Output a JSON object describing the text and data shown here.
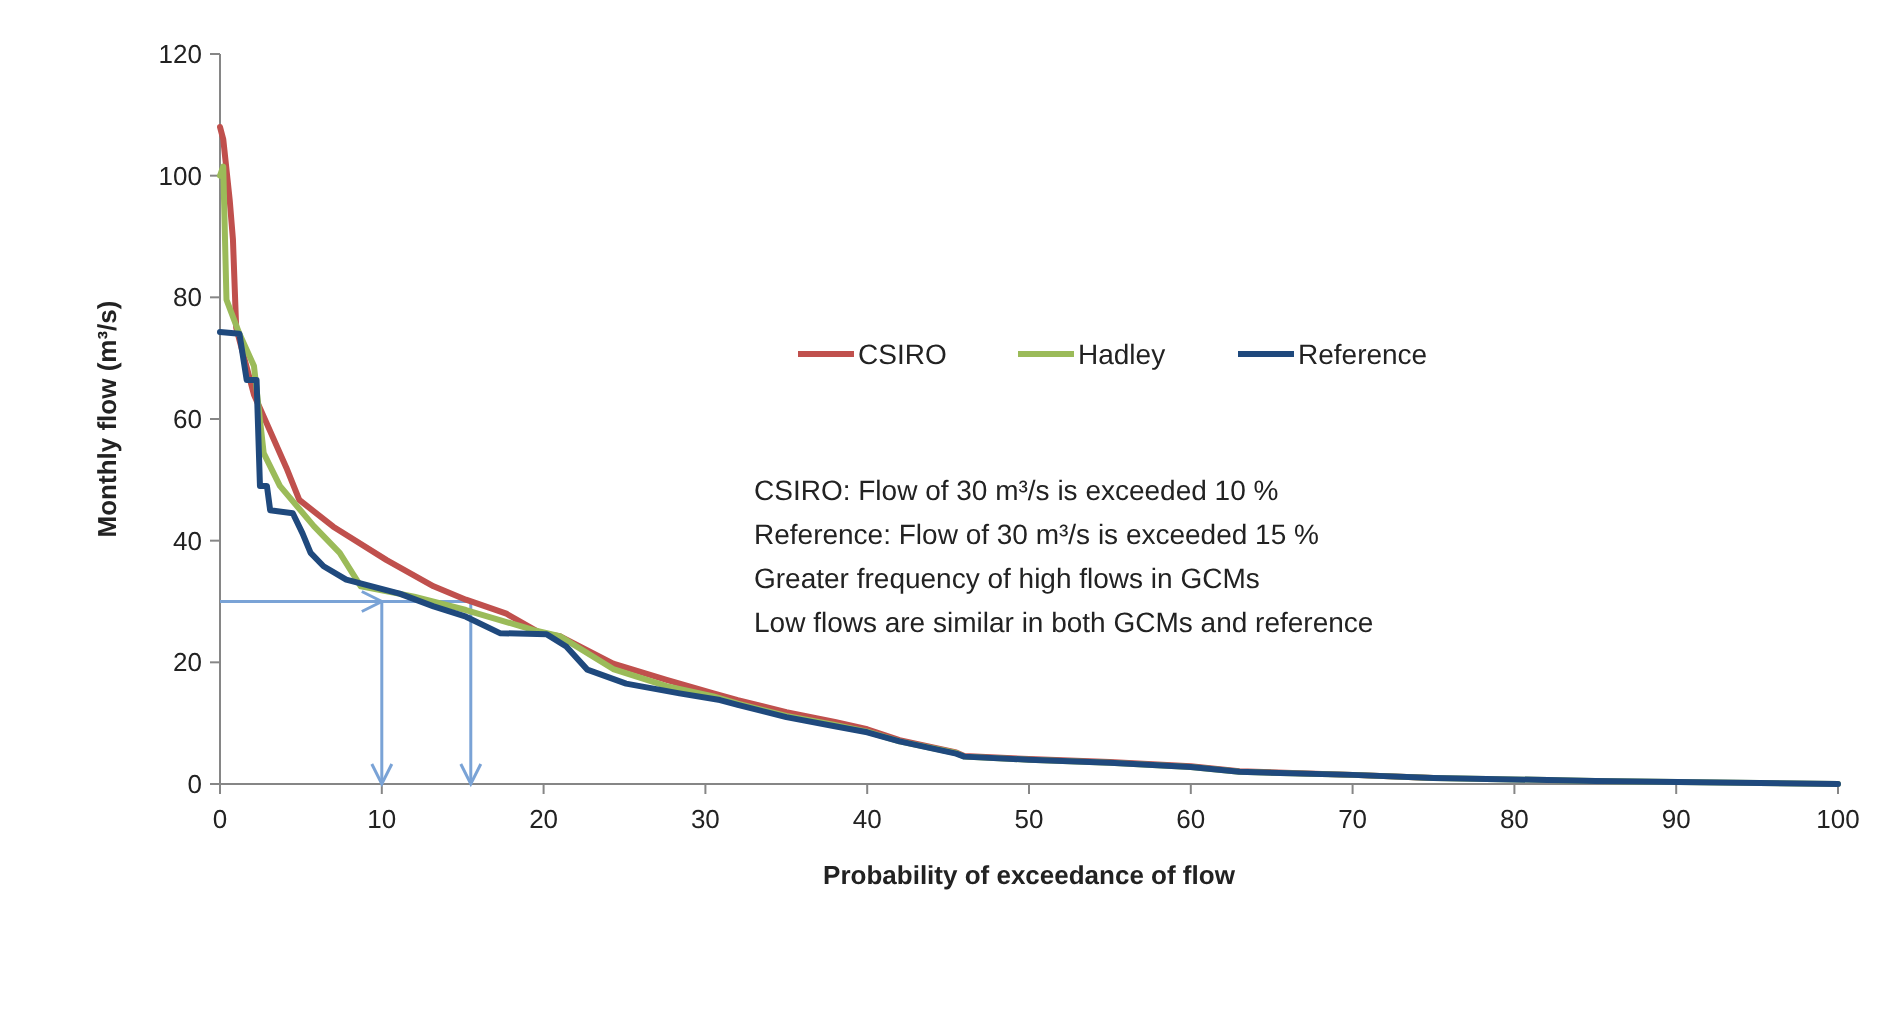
{
  "chart_data": {
    "type": "line",
    "xlabel": "Probability of exceedance of flow",
    "ylabel": "Monthly flow (m³/s)",
    "xlim": [
      0,
      100
    ],
    "xticks": [
      0,
      10,
      20,
      30,
      40,
      50,
      60,
      70,
      80,
      90,
      100
    ],
    "ylim": [
      0,
      120
    ],
    "yticks": [
      0,
      20,
      40,
      60,
      80,
      100,
      120
    ],
    "ref_lines": [
      {
        "axis": "y",
        "value": 30,
        "color": "#7aa3d6"
      },
      {
        "axis": "x",
        "value": 10,
        "color": "#7aa3d6"
      },
      {
        "axis": "x",
        "value": 15.5,
        "color": "#7aa3d6"
      }
    ],
    "grid": false,
    "legend": "right",
    "marker": "none",
    "line_style": "solid",
    "series": [
      {
        "name": "CSIRO",
        "color": "#c0504d",
        "x": [
          0,
          0.2,
          0.6,
          0.8,
          1.0,
          2.1,
          4.1,
          4.9,
          7.0,
          10.3,
          13.2,
          15.2,
          17.7,
          19.8,
          21,
          24.3,
          27.6,
          30.5,
          32,
          35,
          38,
          40,
          42,
          45.5,
          46,
          50,
          55,
          60,
          63,
          70,
          75
        ],
        "values": [
          108,
          106,
          96,
          89.5,
          75,
          64,
          52,
          46.7,
          42.3,
          36.8,
          32.5,
          30.3,
          28,
          24.8,
          24.3,
          19.8,
          17.1,
          14.9,
          13.8,
          11.8,
          10.2,
          9,
          7.2,
          5.2,
          4.6,
          4.1,
          3.6,
          2.9,
          2.1,
          1.5,
          1
        ]
      },
      {
        "name": "Hadley",
        "color": "#9bbb59",
        "x": [
          0,
          0.2,
          0.4,
          1.2,
          2.1,
          2.7,
          3.7,
          5.8,
          7.4,
          8.7,
          12,
          15.2,
          19.4,
          21,
          24.3,
          27.6,
          30.5,
          32,
          35,
          38,
          40,
          42,
          45.5,
          46,
          50,
          55,
          60,
          63,
          70,
          75,
          85,
          100
        ],
        "values": [
          100,
          101.5,
          79.6,
          74,
          68.7,
          54.4,
          49,
          42.4,
          38,
          32.5,
          30.8,
          28.6,
          25.3,
          24.3,
          18.9,
          16.1,
          14.4,
          13.2,
          11.2,
          9.7,
          8.6,
          7,
          5.1,
          4.5,
          4,
          3.5,
          2.8,
          2,
          1.5,
          1,
          0.5,
          0
        ]
      },
      {
        "name": "Reference",
        "color": "#1f497d",
        "x": [
          0,
          1.2,
          1.65,
          2.26,
          2.47,
          2.9,
          3.1,
          4.5,
          5.1,
          5.6,
          6.4,
          7.8,
          11.1,
          13.2,
          15.2,
          17.3,
          20.2,
          21.4,
          22.7,
          25.1,
          28.4,
          30.9,
          32,
          35,
          38,
          40,
          42,
          45.5,
          46,
          50,
          55,
          60,
          63,
          70,
          75,
          85,
          100
        ],
        "values": [
          74.3,
          74,
          66.4,
          66.4,
          49,
          49,
          45,
          44.5,
          41.2,
          38,
          35.8,
          33.6,
          31.3,
          29.2,
          27.5,
          24.8,
          24.6,
          22.6,
          18.8,
          16.5,
          14.9,
          13.8,
          13,
          11,
          9.5,
          8.5,
          7,
          5,
          4.5,
          4,
          3.5,
          2.8,
          2,
          1.5,
          1,
          0.5,
          0
        ]
      }
    ],
    "annotations": [
      "CSIRO: Flow of 30 m³/s is exceeded 10 %",
      "Reference: Flow of 30 m³/s is exceeded 15 %",
      "Greater frequency of high flows in GCMs",
      "Low flows are similar in both GCMs and reference"
    ]
  }
}
